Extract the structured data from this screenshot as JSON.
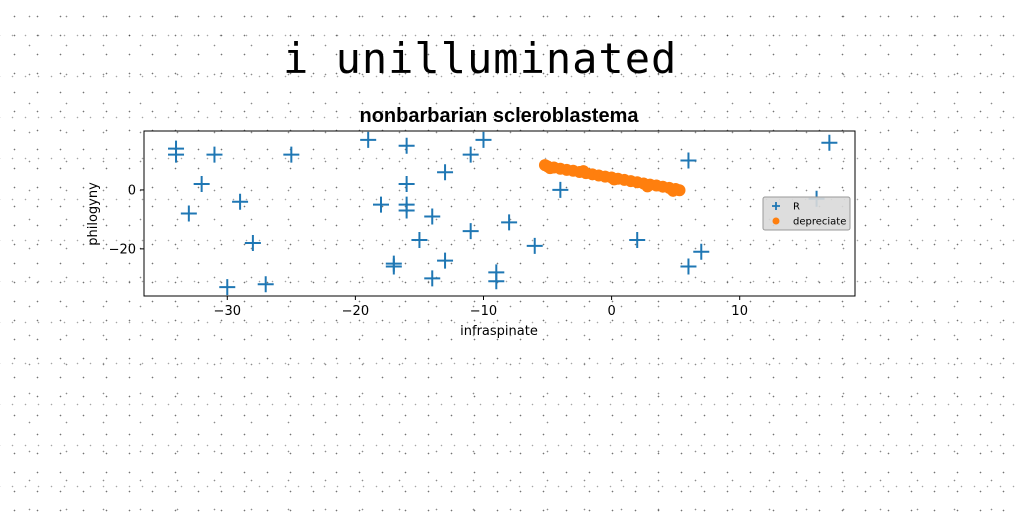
{
  "page": {
    "headline": "i unilluminated"
  },
  "chart_data": {
    "type": "scatter",
    "title": "nonbarbarian scleroblastema",
    "xlabel": "infraspinate",
    "ylabel": "philogyny",
    "xlim": [
      -36.5,
      19
    ],
    "ylim": [
      -36,
      20
    ],
    "xticks": [
      -30,
      -20,
      -10,
      0,
      10
    ],
    "yticks": [
      -20,
      0
    ],
    "grid": false,
    "legend_position": "center-right",
    "series": [
      {
        "name": "R",
        "marker": "plus",
        "color": "#1f77b4",
        "points": [
          [
            -34,
            14
          ],
          [
            -34,
            12
          ],
          [
            -31,
            12
          ],
          [
            -25,
            12
          ],
          [
            -19,
            17
          ],
          [
            -16,
            15
          ],
          [
            -11,
            12
          ],
          [
            -10,
            17
          ],
          [
            -32,
            2
          ],
          [
            -33,
            -8
          ],
          [
            -29,
            -4
          ],
          [
            -28,
            -18
          ],
          [
            -30,
            -33
          ],
          [
            -27,
            -32
          ],
          [
            -18,
            -5
          ],
          [
            -16,
            2
          ],
          [
            -16,
            -5
          ],
          [
            -16,
            -7
          ],
          [
            -14,
            -9
          ],
          [
            -13,
            6
          ],
          [
            -15,
            -17
          ],
          [
            -17,
            -25
          ],
          [
            -17,
            -26
          ],
          [
            -13,
            -24
          ],
          [
            -14,
            -30
          ],
          [
            -11,
            -14
          ],
          [
            -8,
            -11
          ],
          [
            -9,
            -28
          ],
          [
            -9,
            -31
          ],
          [
            -6,
            -19
          ],
          [
            -4,
            0
          ],
          [
            2,
            -17
          ],
          [
            6,
            10
          ],
          [
            6,
            -26
          ],
          [
            7,
            -21
          ],
          [
            16,
            -3
          ],
          [
            17,
            16
          ]
        ]
      },
      {
        "name": "depreciate",
        "marker": "circle",
        "color": "#ff7f0e",
        "points": [
          [
            -5.0,
            8.0
          ],
          [
            -4.5,
            7.6
          ],
          [
            -4.0,
            7.2
          ],
          [
            -3.5,
            6.8
          ],
          [
            -3.0,
            6.5
          ],
          [
            -2.5,
            6.1
          ],
          [
            -2.0,
            5.7
          ],
          [
            -1.5,
            5.3
          ],
          [
            -1.0,
            4.9
          ],
          [
            -0.5,
            4.5
          ],
          [
            0.0,
            4.2
          ],
          [
            0.5,
            3.8
          ],
          [
            1.0,
            3.4
          ],
          [
            1.5,
            3.0
          ],
          [
            2.0,
            2.6
          ],
          [
            2.5,
            2.2
          ],
          [
            3.0,
            1.8
          ],
          [
            3.5,
            1.5
          ],
          [
            4.0,
            1.1
          ],
          [
            4.5,
            0.7
          ],
          [
            5.0,
            0.3
          ],
          [
            5.3,
            -0.1
          ],
          [
            -5.2,
            8.4
          ],
          [
            -4.8,
            7.4
          ],
          [
            0.2,
            3.6
          ],
          [
            4.8,
            -0.3
          ],
          [
            -2.2,
            6.4
          ],
          [
            2.8,
            1.2
          ]
        ]
      }
    ]
  }
}
